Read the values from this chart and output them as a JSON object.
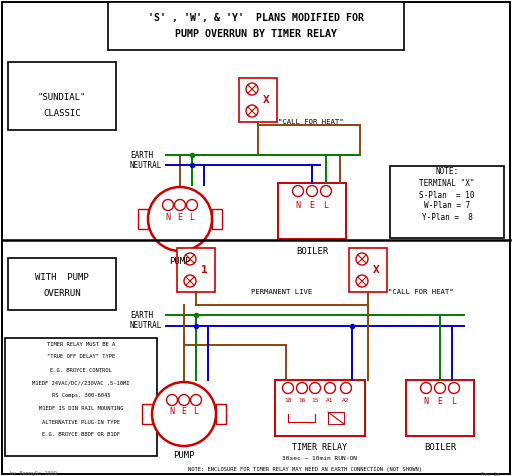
{
  "title_line1": "'S' , 'W', & 'Y'  PLANS MODIFIED FOR",
  "title_line2": "PUMP OVERRUN BY TIMER RELAY",
  "bg_color": "#ffffff",
  "red": "#cc0000",
  "green": "#008000",
  "blue": "#0000cc",
  "brown": "#8B4513",
  "black": "#000000",
  "sundial_label1": "\"SUNDIAL\"",
  "sundial_label2": "CLASSIC",
  "pump_label": "PUMP",
  "boiler_label": "BOILER",
  "timer_label": "TIMER RELAY",
  "timer_sub": "30sec ~ 10min RUN-ON",
  "call_heat": "\"CALL FOR HEAT\"",
  "perm_live": "PERMANENT LIVE",
  "earth_lbl": "EARTH",
  "neutral_lbl": "NEUTRAL",
  "with_pump1": "WITH  PUMP",
  "with_pump2": "OVERRUN",
  "note_title": "NOTE:",
  "note_term": "TERMINAL \"X\"",
  "note_s": "S-Plan  = 10",
  "note_w": "W-Plan = 7",
  "note_y": "Y-Plan =  8",
  "note_lines": [
    "TIMER RELAY MUST BE A",
    "\"TRUE OFF DELAY\" TYPE",
    "E.G. BROYCE CONTROL",
    "M1EDF 24VAC/DC//230VAC .5-10MI",
    "RS Comps. 300-6045",
    "M1EDF IS DIN RAIL MOUNTING",
    "ALTERNATIVE PLUG-IN TYPE",
    "E.G. BROYCE B8DF OR B1DF"
  ],
  "bottom_note": "NOTE: ENCLOSURE FOR TIMER RELAY MAY NEED AN EARTH CONNECTION (NOT SHOWN)",
  "credit_left": "by BennyDc 2009",
  "credit_right": "Rev 1a"
}
